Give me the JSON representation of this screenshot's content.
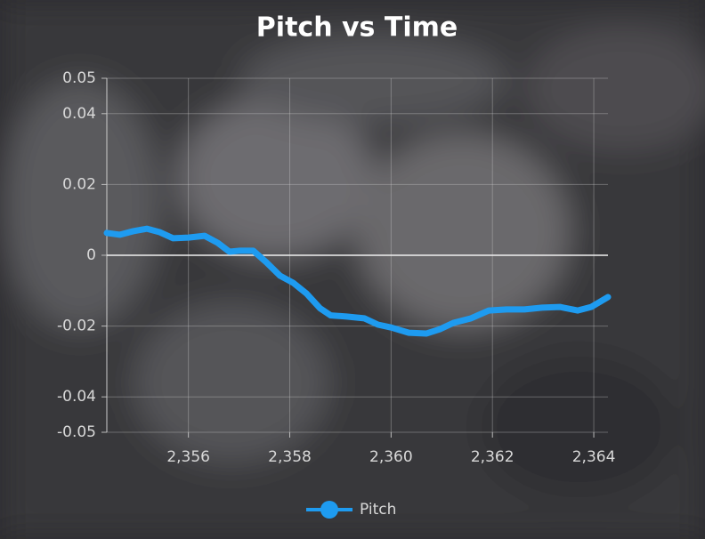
{
  "chart_data": {
    "type": "line",
    "title": "Pitch vs Time",
    "x": [
      2354.39,
      2354.65,
      2354.91,
      2355.18,
      2355.44,
      2355.7,
      2356.0,
      2356.32,
      2356.58,
      2356.81,
      2357.02,
      2357.28,
      2357.54,
      2357.81,
      2358.07,
      2358.33,
      2358.6,
      2358.81,
      2359.12,
      2359.47,
      2359.74,
      2360.0,
      2360.35,
      2360.7,
      2360.96,
      2361.23,
      2361.58,
      2361.93,
      2362.28,
      2362.63,
      2362.98,
      2363.33,
      2363.68,
      2363.95,
      2364.28
    ],
    "series": [
      {
        "name": "Pitch",
        "color": "#1e9bf0",
        "values": [
          0.0063,
          0.0058,
          0.0068,
          0.0075,
          0.0065,
          0.0048,
          0.005,
          0.0055,
          0.0035,
          0.001,
          0.0013,
          0.0013,
          -0.002,
          -0.0058,
          -0.0078,
          -0.0108,
          -0.015,
          -0.017,
          -0.0173,
          -0.0178,
          -0.0196,
          -0.0204,
          -0.0219,
          -0.0221,
          -0.0209,
          -0.0191,
          -0.0178,
          -0.0156,
          -0.0153,
          -0.0153,
          -0.0148,
          -0.0146,
          -0.0156,
          -0.0146,
          -0.0118
        ]
      }
    ],
    "xlim": [
      2354.39,
      2364.28
    ],
    "xticks": [
      {
        "value": 2356,
        "label": "2,356"
      },
      {
        "value": 2358,
        "label": "2,358"
      },
      {
        "value": 2360,
        "label": "2,360"
      },
      {
        "value": 2362,
        "label": "2,362"
      },
      {
        "value": 2364,
        "label": "2,364"
      }
    ],
    "ylim": [
      -0.05,
      0.05
    ],
    "yticks": [
      -0.05,
      -0.04,
      -0.02,
      0,
      0.02,
      0.04,
      0.05
    ],
    "grid": true,
    "legend": "bottom"
  }
}
